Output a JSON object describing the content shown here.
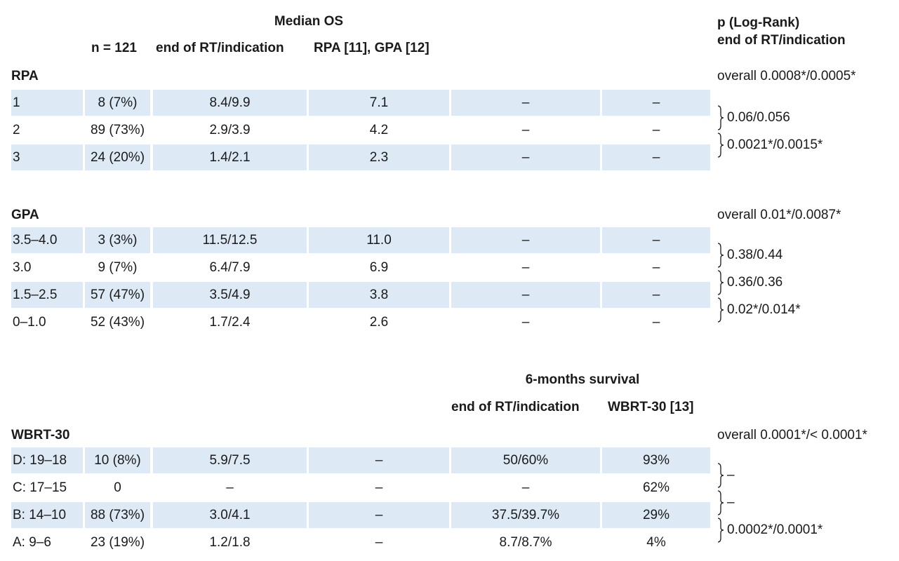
{
  "header": {
    "median_os": "Median OS",
    "n": "n = 121",
    "end_rt": "end of RT/indication",
    "rpa_gpa_ref": "RPA [11], GPA [12]",
    "p_logrank": "p (Log-Rank)",
    "p_end_rt": "end of RT/indication",
    "six_month": "6-months survival",
    "six_end_rt": "end of RT/indication",
    "wbrt_ref": "WBRT-30 [13]"
  },
  "rpa": {
    "title": "RPA",
    "overall": "overall 0.0008*/0.0005*",
    "rows": [
      {
        "label": "1",
        "n": "8 (7%)",
        "os": "8.4/9.9",
        "ref": "7.1",
        "s6": "–",
        "s6ref": "–"
      },
      {
        "label": "2",
        "n": "89 (73%)",
        "os": "2.9/3.9",
        "ref": "4.2",
        "s6": "–",
        "s6ref": "–"
      },
      {
        "label": "3",
        "n": "24 (20%)",
        "os": "1.4/2.1",
        "ref": "2.3",
        "s6": "–",
        "s6ref": "–"
      }
    ],
    "pvals": [
      "0.06/0.056",
      "0.0021*/0.0015*"
    ]
  },
  "gpa": {
    "title": "GPA",
    "overall": "overall 0.01*/0.0087*",
    "rows": [
      {
        "label": "3.5–4.0",
        "n": "3 (3%)",
        "os": "11.5/12.5",
        "ref": "11.0",
        "s6": "–",
        "s6ref": "–"
      },
      {
        "label": "3.0",
        "n": "9 (7%)",
        "os": "6.4/7.9",
        "ref": "6.9",
        "s6": "–",
        "s6ref": "–"
      },
      {
        "label": "1.5–2.5",
        "n": "57 (47%)",
        "os": "3.5/4.9",
        "ref": "3.8",
        "s6": "–",
        "s6ref": "–"
      },
      {
        "label": "0–1.0",
        "n": "52 (43%)",
        "os": "1.7/2.4",
        "ref": "2.6",
        "s6": "–",
        "s6ref": "–"
      }
    ],
    "pvals": [
      "0.38/0.44",
      "0.36/0.36",
      "0.02*/0.014*"
    ]
  },
  "wbrt": {
    "title": "WBRT-30",
    "overall": "overall 0.0001*/< 0.0001*",
    "rows": [
      {
        "label": "D: 19–18",
        "n": "10 (8%)",
        "os": "5.9/7.5",
        "ref": "–",
        "s6": "50/60%",
        "s6ref": "93%"
      },
      {
        "label": "C: 17–15",
        "n": "0",
        "os": "–",
        "ref": "–",
        "s6": "–",
        "s6ref": "62%"
      },
      {
        "label": "B: 14–10",
        "n": "88 (73%)",
        "os": "3.0/4.1",
        "ref": "–",
        "s6": "37.5/39.7%",
        "s6ref": "29%"
      },
      {
        "label": "A: 9–6",
        "n": "23 (19%)",
        "os": "1.2/1.8",
        "ref": "–",
        "s6": "8.7/8.7%",
        "s6ref": "4%"
      }
    ],
    "pvals": [
      "–",
      "–",
      "0.0002*/0.0001*"
    ]
  }
}
